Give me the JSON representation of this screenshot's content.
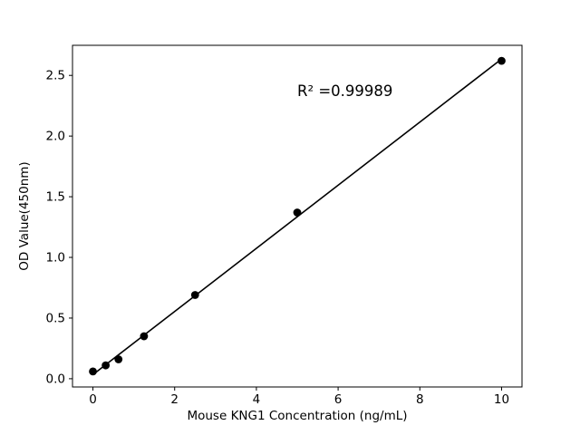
{
  "chart_data": {
    "type": "scatter",
    "title": "",
    "xlabel": "Mouse KNG1 Concentration (ng/mL)",
    "ylabel": "OD Value(450nm)",
    "annotation": {
      "text": "R² =0.99989",
      "x": 5.0,
      "y": 2.33
    },
    "x": [
      0,
      0.3125,
      0.625,
      1.25,
      2.5,
      5,
      10
    ],
    "y": [
      0.06,
      0.11,
      0.16,
      0.35,
      0.69,
      1.37,
      2.62
    ],
    "fit": "linear",
    "xlim": [
      -0.5,
      10.5
    ],
    "ylim": [
      -0.068,
      2.748
    ],
    "xticks": {
      "values": [
        0,
        2,
        4,
        6,
        8,
        10
      ],
      "labels": [
        "0",
        "2",
        "4",
        "6",
        "8",
        "10"
      ]
    },
    "yticks": {
      "values": [
        0,
        0.5,
        1.0,
        1.5,
        2.0,
        2.5
      ],
      "labels": [
        "0.0",
        "0.5",
        "1.0",
        "1.5",
        "2.0",
        "2.5"
      ]
    },
    "legend": null,
    "grid": false,
    "colors": {
      "marker": "#000000",
      "line": "#000000",
      "axis": "#000000",
      "background": "#ffffff"
    }
  }
}
